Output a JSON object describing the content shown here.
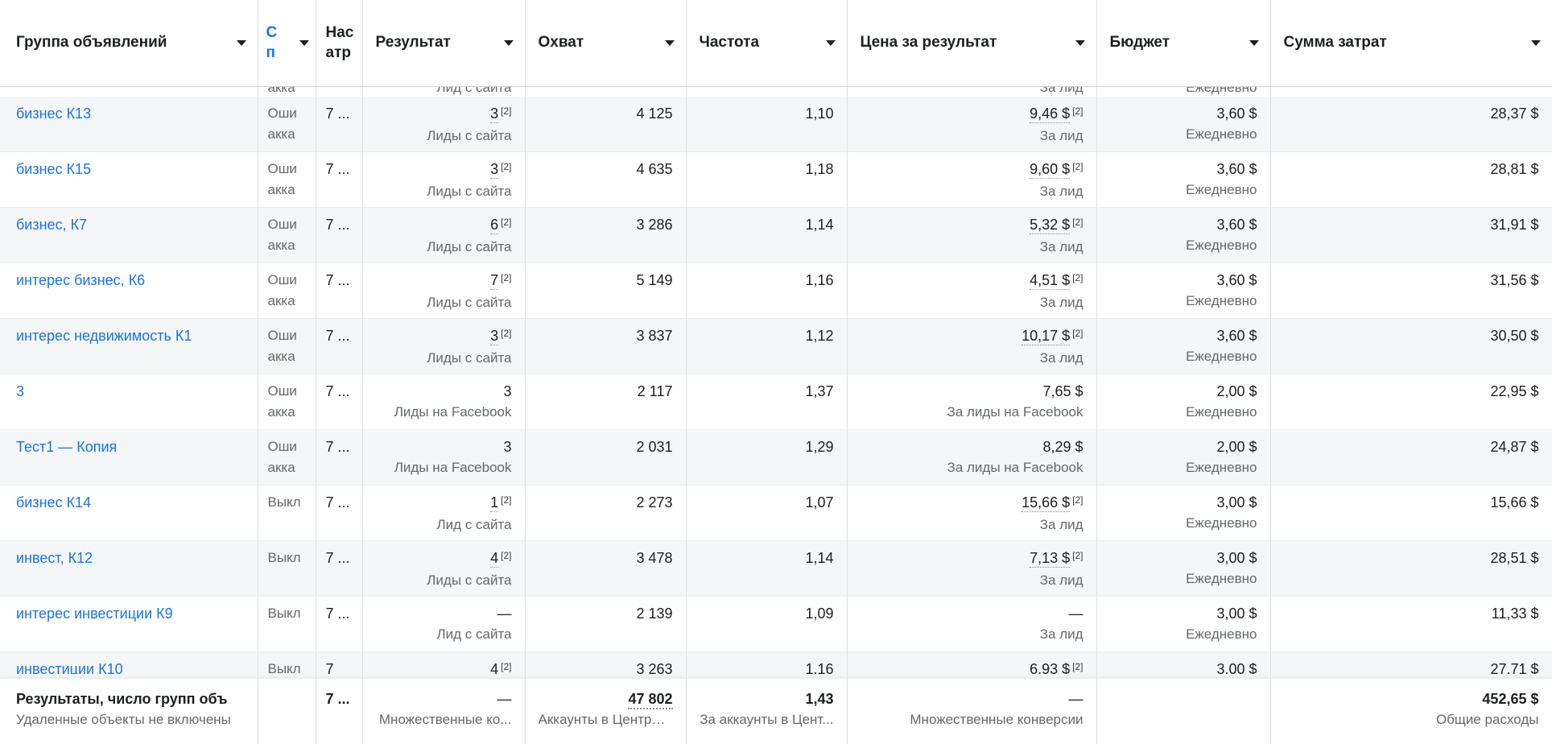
{
  "colors": {
    "link_blue": "#1b74e4",
    "text": "#1c1e21",
    "secondary_text": "#65676b",
    "alt_row_bg": "#f5f6f7",
    "column_border": "#dddfe2"
  },
  "table": {
    "columns": [
      {
        "label": "Группа объявлений",
        "sort_arrow": true
      },
      {
        "lines": [
          "С",
          "п"
        ],
        "truncated": true,
        "sort_arrow": true
      },
      {
        "lines": [
          "Нас",
          "атр"
        ],
        "truncated": true,
        "sort_arrow": false
      },
      {
        "label": "Результат",
        "sort_arrow": true
      },
      {
        "label": "Охват",
        "sort_arrow": true
      },
      {
        "label": "Частота",
        "sort_arrow": true
      },
      {
        "label": "Цена за результат",
        "sort_arrow": true
      },
      {
        "label": "Бюджет",
        "sort_arrow": true
      },
      {
        "label": "Сумма затрат",
        "sort_arrow": true
      }
    ],
    "partial_top_row": {
      "status": "акка",
      "result_label": "Лид с сайта",
      "cost_label": "За лид",
      "budget_label": "Ежедневно"
    },
    "rows": [
      {
        "name": "бизнес К13",
        "status_lines": [
          "Оши",
          "акка"
        ],
        "attribution": "7 ...",
        "result": "3",
        "result_ref": "[2]",
        "result_label": "Лиды с сайта",
        "reach": "4 125",
        "frequency": "1,10",
        "cost": "9,46 $",
        "cost_ref": "[2]",
        "cost_label": "За лид",
        "budget": "3,60 $",
        "budget_label": "Ежедневно",
        "spend": "28,37 $"
      },
      {
        "name": "бизнес К15",
        "status_lines": [
          "Оши",
          "акка"
        ],
        "attribution": "7 ...",
        "result": "3",
        "result_ref": "[2]",
        "result_label": "Лиды с сайта",
        "reach": "4 635",
        "frequency": "1,18",
        "cost": "9,60 $",
        "cost_ref": "[2]",
        "cost_label": "За лид",
        "budget": "3,60 $",
        "budget_label": "Ежедневно",
        "spend": "28,81 $"
      },
      {
        "name": "бизнес, К7",
        "status_lines": [
          "Оши",
          "акка"
        ],
        "attribution": "7 ...",
        "result": "6",
        "result_ref": "[2]",
        "result_label": "Лиды с сайта",
        "reach": "3 286",
        "frequency": "1,14",
        "cost": "5,32 $",
        "cost_ref": "[2]",
        "cost_label": "За лид",
        "budget": "3,60 $",
        "budget_label": "Ежедневно",
        "spend": "31,91 $"
      },
      {
        "name": "интерес бизнес, К6",
        "status_lines": [
          "Оши",
          "акка"
        ],
        "attribution": "7 ...",
        "result": "7",
        "result_ref": "[2]",
        "result_label": "Лиды с сайта",
        "reach": "5 149",
        "frequency": "1,16",
        "cost": "4,51 $",
        "cost_ref": "[2]",
        "cost_label": "За лид",
        "budget": "3,60 $",
        "budget_label": "Ежедневно",
        "spend": "31,56 $"
      },
      {
        "name": "интерес недвижимость К1",
        "status_lines": [
          "Оши",
          "акка"
        ],
        "attribution": "7 ...",
        "result": "3",
        "result_ref": "[2]",
        "result_label": "Лиды с сайта",
        "reach": "3 837",
        "frequency": "1,12",
        "cost": "10,17 $",
        "cost_ref": "[2]",
        "cost_label": "За лид",
        "budget": "3,60 $",
        "budget_label": "Ежедневно",
        "spend": "30,50 $"
      },
      {
        "name": "3",
        "status_lines": [
          "Оши",
          "акка"
        ],
        "attribution": "7 ...",
        "result": "3",
        "result_ref": "",
        "result_label": "Лиды на Facebook",
        "reach": "2 117",
        "frequency": "1,37",
        "cost": "7,65 $",
        "cost_ref": "",
        "cost_label": "За лиды на Facebook",
        "budget": "2,00 $",
        "budget_label": "Ежедневно",
        "spend": "22,95 $"
      },
      {
        "name": "Тест1 — Копия",
        "status_lines": [
          "Оши",
          "акка"
        ],
        "attribution": "7 ...",
        "result": "3",
        "result_ref": "",
        "result_label": "Лиды на Facebook",
        "reach": "2 031",
        "frequency": "1,29",
        "cost": "8,29 $",
        "cost_ref": "",
        "cost_label": "За лиды на Facebook",
        "budget": "2,00 $",
        "budget_label": "Ежедневно",
        "spend": "24,87 $"
      },
      {
        "name": "бизнес К14",
        "status_lines": [
          "Выкл"
        ],
        "attribution": "7 ...",
        "result": "1",
        "result_ref": "[2]",
        "result_label": "Лид с сайта",
        "reach": "2 273",
        "frequency": "1,07",
        "cost": "15,66 $",
        "cost_ref": "[2]",
        "cost_label": "За лид",
        "budget": "3,00 $",
        "budget_label": "Ежедневно",
        "spend": "15,66 $"
      },
      {
        "name": "инвест, К12",
        "status_lines": [
          "Выкл"
        ],
        "attribution": "7 ...",
        "result": "4",
        "result_ref": "[2]",
        "result_label": "Лиды с сайта",
        "reach": "3 478",
        "frequency": "1,14",
        "cost": "7,13 $",
        "cost_ref": "[2]",
        "cost_label": "За лид",
        "budget": "3,00 $",
        "budget_label": "Ежедневно",
        "spend": "28,51 $"
      },
      {
        "name": "интерес инвестиции К9",
        "status_lines": [
          "Выкл"
        ],
        "attribution": "7 ...",
        "result": "—",
        "result_ref": "",
        "result_label": "Лид с сайта",
        "reach": "2 139",
        "frequency": "1,09",
        "cost": "—",
        "cost_ref": "",
        "cost_label": "За лид",
        "budget": "3,00 $",
        "budget_label": "Ежедневно",
        "spend": "11,33 $"
      },
      {
        "name": "инвестиции К10",
        "status_lines": [
          "Выкл"
        ],
        "attribution": "7",
        "result": "4",
        "result_ref": "[2]",
        "result_label": "",
        "reach": "3 263",
        "frequency": "1,16",
        "cost": "6,93 $",
        "cost_ref": "[2]",
        "cost_label": "",
        "budget": "3,00 $",
        "budget_label": "",
        "spend": "27,71 $",
        "clipped": true
      }
    ],
    "footer": {
      "title": "Результаты, число групп объ",
      "subtitle": "Удаленные объекты не включены",
      "attribution": "7 ...",
      "result": "—",
      "result_label": "Множественные ко...",
      "reach": "47 802",
      "reach_label": "Аккаунты в Центре ...",
      "frequency": "1,43",
      "frequency_label": "За аккаунты в Цент...",
      "cost": "—",
      "cost_label": "Множественные конверсии",
      "budget": "",
      "spend": "452,65 $",
      "spend_label": "Общие расходы"
    }
  }
}
